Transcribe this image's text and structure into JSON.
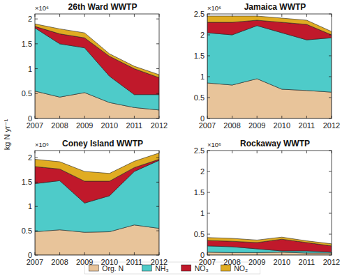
{
  "chart_data": [
    {
      "type": "area",
      "stacked": true,
      "title": "26th Ward WWTP",
      "ylabel": "kg N yr⁻¹",
      "annotation": "×10⁶",
      "legend": "bottom",
      "grid": false,
      "x": [
        2007,
        2008,
        2009,
        2010,
        2011,
        2012
      ],
      "xlim": [
        2007,
        2012
      ],
      "xticks": [
        2007,
        2008,
        2009,
        2010,
        2011,
        2012
      ],
      "ylim": [
        0,
        2.1
      ],
      "yticks": [
        0,
        0.5,
        1,
        1.5,
        2
      ],
      "series": [
        {
          "name": "Org. N",
          "color": "#e8c49a",
          "values": [
            0.55,
            0.43,
            0.52,
            0.32,
            0.22,
            0.17
          ]
        },
        {
          "name": "NH₃",
          "color": "#4ecbc9",
          "values": [
            1.27,
            1.07,
            0.9,
            0.53,
            0.26,
            0.31
          ]
        },
        {
          "name": "NO₃",
          "color": "#c0192b",
          "values": [
            0.03,
            0.2,
            0.2,
            0.4,
            0.52,
            0.34
          ]
        },
        {
          "name": "NO₂",
          "color": "#e0ac22",
          "values": [
            0.05,
            0.1,
            0.1,
            0.05,
            0.05,
            0.06
          ]
        }
      ]
    },
    {
      "type": "area",
      "stacked": true,
      "title": "Jamaica WWTP",
      "annotation": "×10⁶",
      "grid": false,
      "x": [
        2007,
        2008,
        2009,
        2010,
        2011,
        2012
      ],
      "xlim": [
        2007,
        2012
      ],
      "xticks": [
        2007,
        2008,
        2009,
        2010,
        2011,
        2012
      ],
      "ylim": [
        0,
        2.5
      ],
      "yticks": [
        0,
        0.5,
        1,
        1.5,
        2,
        2.5
      ],
      "series": [
        {
          "name": "Org. N",
          "color": "#e8c49a",
          "values": [
            0.85,
            0.8,
            0.95,
            0.7,
            0.67,
            0.63
          ]
        },
        {
          "name": "NH₃",
          "color": "#4ecbc9",
          "values": [
            1.2,
            1.2,
            1.27,
            1.35,
            1.21,
            1.3
          ]
        },
        {
          "name": "NO₃",
          "color": "#c0192b",
          "values": [
            0.25,
            0.3,
            0.13,
            0.25,
            0.37,
            0.07
          ]
        },
        {
          "name": "NO₂",
          "color": "#e0ac22",
          "values": [
            0.15,
            0.15,
            0.1,
            0.1,
            0.1,
            0.08
          ]
        }
      ]
    },
    {
      "type": "area",
      "stacked": true,
      "title": "Coney Island WWTP",
      "annotation": "×10⁶",
      "grid": false,
      "x": [
        2007,
        2008,
        2009,
        2010,
        2011,
        2012
      ],
      "xlim": [
        2007,
        2012
      ],
      "xticks": [
        2007,
        2008,
        2009,
        2010,
        2011,
        2012
      ],
      "ylim": [
        0,
        2.15
      ],
      "yticks": [
        0,
        0.5,
        1,
        1.5,
        2
      ],
      "series": [
        {
          "name": "Org. N",
          "color": "#e8c49a",
          "values": [
            0.48,
            0.52,
            0.47,
            0.48,
            0.62,
            0.55
          ]
        },
        {
          "name": "NH₃",
          "color": "#4ecbc9",
          "values": [
            0.99,
            1.01,
            0.6,
            0.74,
            1.1,
            1.4
          ]
        },
        {
          "name": "NO₃",
          "color": "#c0192b",
          "values": [
            0.35,
            0.24,
            0.45,
            0.3,
            0.08,
            0.02
          ]
        },
        {
          "name": "NO₂",
          "color": "#e0ac22",
          "values": [
            0.15,
            0.15,
            0.2,
            0.16,
            0.13,
            0.13
          ]
        }
      ]
    },
    {
      "type": "area",
      "stacked": true,
      "title": "Rockaway WWTP",
      "annotation": "×10⁶",
      "grid": false,
      "x": [
        2007,
        2008,
        2009,
        2010,
        2011,
        2012
      ],
      "xlim": [
        2007,
        2012
      ],
      "xticks": [
        2007,
        2008,
        2009,
        2010,
        2011,
        2012
      ],
      "ylim": [
        0,
        2.5
      ],
      "yticks": [
        0,
        0.5,
        1,
        1.5,
        2,
        2.5
      ],
      "series": [
        {
          "name": "Org. N",
          "color": "#e8c49a",
          "values": [
            0.07,
            0.06,
            0.06,
            0.07,
            0.05,
            0.05
          ]
        },
        {
          "name": "NH₃",
          "color": "#4ecbc9",
          "values": [
            0.15,
            0.14,
            0.09,
            0.03,
            0.05,
            0.02
          ]
        },
        {
          "name": "NO₃",
          "color": "#c0192b",
          "values": [
            0.13,
            0.13,
            0.15,
            0.28,
            0.2,
            0.15
          ]
        },
        {
          "name": "NO₂",
          "color": "#e0ac22",
          "values": [
            0.07,
            0.07,
            0.06,
            0.05,
            0.04,
            0.05
          ]
        }
      ]
    }
  ]
}
